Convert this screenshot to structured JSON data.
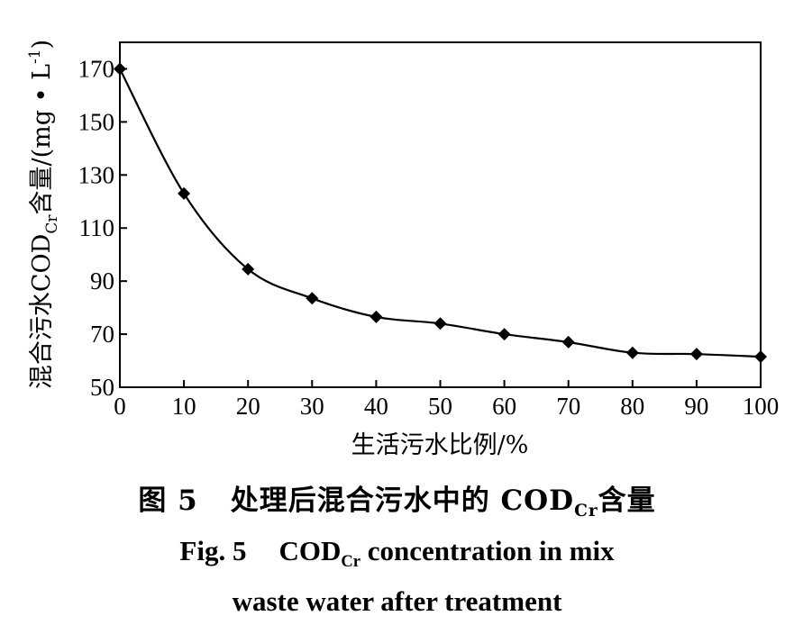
{
  "chart_data": {
    "type": "line",
    "x": [
      0,
      10,
      20,
      30,
      40,
      50,
      60,
      70,
      80,
      90,
      100
    ],
    "series": [
      {
        "values": [
          170,
          123,
          94.5,
          83.5,
          76.5,
          74,
          70,
          67,
          63,
          62.5,
          61.5
        ]
      }
    ],
    "xlim": [
      0,
      100
    ],
    "ylim": [
      50,
      180
    ],
    "x_ticks": [
      "0",
      "10",
      "20",
      "30",
      "40",
      "50",
      "60",
      "70",
      "80",
      "90",
      "100"
    ],
    "y_ticks": [
      "50",
      "70",
      "90",
      "110",
      "130",
      "150",
      "170"
    ],
    "xlabel": "生活污水比例/%",
    "ylabel": {
      "main": "混合污水COD",
      "sub": "Cr",
      "rest": "含量/(mg • L",
      "sup": "-1",
      "end": ")"
    },
    "grid": false,
    "marker": "diamond",
    "line_color": "#000000"
  },
  "caption": {
    "zh": {
      "fig": "图 5",
      "text": "处理后混合污水中的 COD",
      "sub": "Cr",
      "tail": "含量"
    },
    "en_line1": {
      "fig": "Fig. 5",
      "text": "COD",
      "sub": "Cr",
      "tail": " concentration in mix"
    },
    "en_line2": "waste water after treatment"
  }
}
